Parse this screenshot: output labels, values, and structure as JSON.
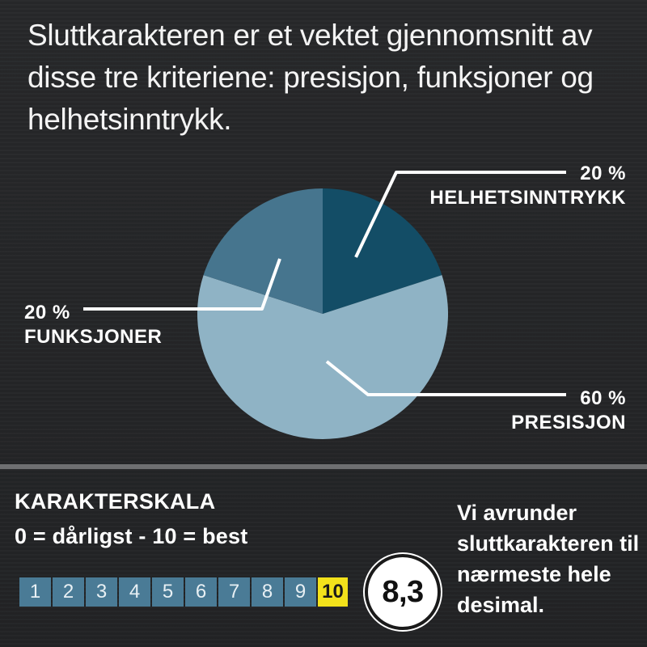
{
  "intro_text": "Sluttkarakteren er et vektet gjennomsnitt av disse tre kriteriene: presisjon, funksjoner og helhetsinntrykk.",
  "chart_data": {
    "type": "pie",
    "title": "",
    "slices": [
      {
        "label": "HELHETSINNTRYKK",
        "value": 20,
        "value_label": "20 %",
        "color": "#134d66"
      },
      {
        "label": "PRESISJON",
        "value": 60,
        "value_label": "60 %",
        "color": "#8fb3c5"
      },
      {
        "label": "FUNKSJONER",
        "value": 20,
        "value_label": "20 %",
        "color": "#46758e"
      }
    ]
  },
  "scale": {
    "title": "KARAKTERSKALA",
    "subtitle": "0 = dårligst - 10 = best",
    "boxes": [
      "1",
      "2",
      "3",
      "4",
      "5",
      "6",
      "7",
      "8",
      "9",
      "10"
    ],
    "highlight": "10",
    "score": "8,3"
  },
  "note": "Vi avrunder sluttkarakteren til nærmeste hele desimal.",
  "colors": {
    "background": "#252627",
    "box": "#4a7b96",
    "highlight": "#f3e21b"
  }
}
